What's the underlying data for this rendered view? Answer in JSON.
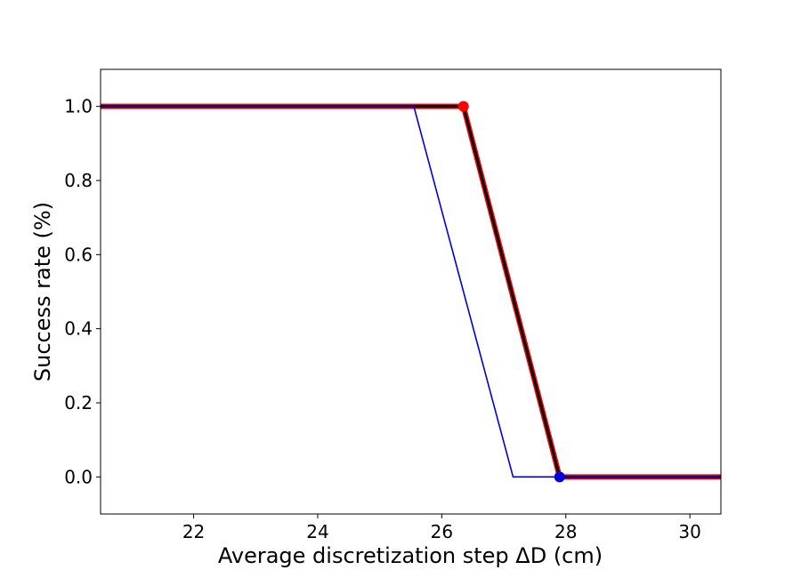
{
  "chart_data": {
    "type": "line",
    "title": "",
    "xlabel": "Average discretization step ΔD (cm)",
    "ylabel": "Success rate (%)",
    "xlim": [
      20.5,
      30.5
    ],
    "ylim": [
      -0.1,
      1.1
    ],
    "xticks": [
      22,
      24,
      26,
      28,
      30
    ],
    "xtick_labels": [
      "22",
      "24",
      "26",
      "28",
      "30"
    ],
    "yticks": [
      0.0,
      0.2,
      0.4,
      0.6,
      0.8,
      1.0
    ],
    "ytick_labels": [
      "0.0",
      "0.2",
      "0.4",
      "0.6",
      "0.8",
      "1.0"
    ],
    "grid": false,
    "series": [
      {
        "color": "#ff0000",
        "style": "thick",
        "x": [
          20.5,
          26.35,
          27.9,
          30.5
        ],
        "y": [
          1.0,
          1.0,
          0.0,
          0.0
        ],
        "markers": [
          {
            "x": 26.35,
            "y": 1.0
          }
        ]
      },
      {
        "color": "#000000",
        "style": "medium",
        "x": [
          20.5,
          26.35,
          27.9,
          30.5
        ],
        "y": [
          1.0,
          1.0,
          0.0,
          0.0
        ]
      },
      {
        "color": "#0000dd",
        "style": "thin",
        "x": [
          20.5,
          25.55,
          27.15,
          27.9,
          30.5
        ],
        "y": [
          1.0,
          1.0,
          0.0,
          0.0,
          0.0
        ],
        "markers": [
          {
            "x": 27.9,
            "y": 0.0
          }
        ]
      }
    ]
  }
}
